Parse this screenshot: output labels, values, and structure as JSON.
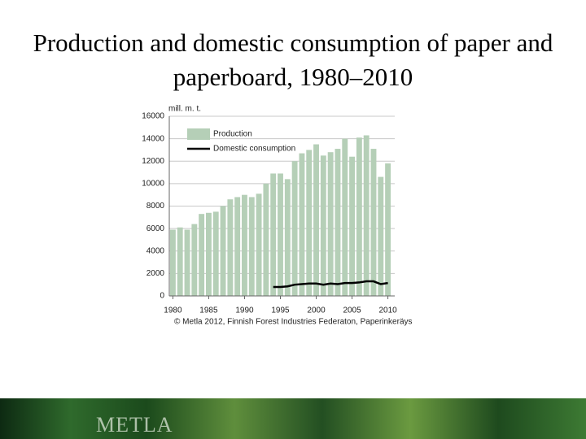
{
  "title": "Production and domestic consumption of paper and paperboard, 1980–2010",
  "chart_data": {
    "type": "bar-line",
    "y_axis_label": "mill. m. t.",
    "source": "© Metla 2012, Finnish Forest Industries Federaton, Paperinkeräys",
    "x": [
      1980,
      1981,
      1982,
      1983,
      1984,
      1985,
      1986,
      1987,
      1988,
      1989,
      1990,
      1991,
      1992,
      1993,
      1994,
      1995,
      1996,
      1997,
      1998,
      1999,
      2000,
      2001,
      2002,
      2003,
      2004,
      2005,
      2006,
      2007,
      2008,
      2009,
      2010
    ],
    "series": [
      {
        "name": "Production",
        "kind": "bar",
        "color": "#b5cfb7",
        "values": [
          5900,
          6100,
          5900,
          6400,
          7300,
          7400,
          7500,
          8000,
          8600,
          8800,
          9000,
          8800,
          9100,
          10000,
          10900,
          10900,
          10400,
          12000,
          12700,
          13000,
          13500,
          12500,
          12800,
          13100,
          14000,
          12400,
          14100,
          14300,
          13100,
          10600,
          11800
        ]
      },
      {
        "name": "Domestic consumption",
        "kind": "line",
        "color": "#000000",
        "values": [
          null,
          null,
          null,
          null,
          null,
          null,
          null,
          null,
          null,
          null,
          null,
          null,
          null,
          null,
          800,
          800,
          850,
          1000,
          1050,
          1100,
          1100,
          1000,
          1100,
          1050,
          1150,
          1150,
          1200,
          1300,
          1300,
          1050,
          1150
        ]
      }
    ],
    "xlim": [
      1979.5,
      2010.5
    ],
    "xticks": [
      1980,
      1985,
      1990,
      1995,
      2000,
      2005,
      2010
    ],
    "ylim": [
      0,
      16000
    ],
    "yticks": [
      0,
      2000,
      4000,
      6000,
      8000,
      10000,
      12000,
      14000,
      16000
    ],
    "grid": true,
    "legend": "top-left"
  },
  "footer": {
    "logo": "METLA"
  }
}
